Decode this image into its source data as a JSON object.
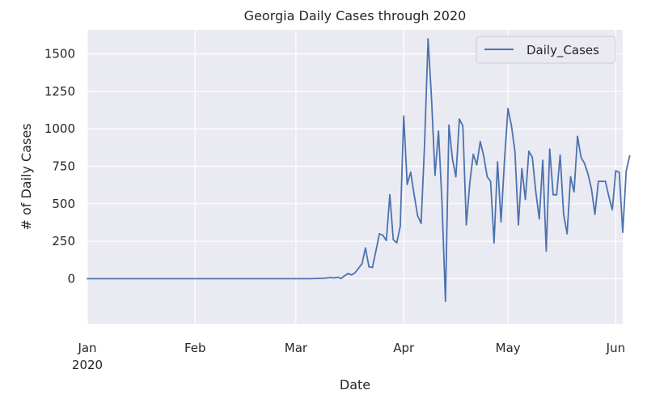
{
  "chart_data": {
    "type": "line",
    "title": "Georgia Daily Cases through 2020",
    "xlabel": "Date",
    "ylabel": "# of Daily Cases",
    "x_ticks": [
      {
        "date": "2020-01-01",
        "label": "Jan",
        "sublabel": "2020"
      },
      {
        "date": "2020-02-01",
        "label": "Feb",
        "sublabel": ""
      },
      {
        "date": "2020-03-01",
        "label": "Mar",
        "sublabel": ""
      },
      {
        "date": "2020-04-01",
        "label": "Apr",
        "sublabel": ""
      },
      {
        "date": "2020-05-01",
        "label": "May",
        "sublabel": ""
      },
      {
        "date": "2020-06-01",
        "label": "Jun",
        "sublabel": ""
      }
    ],
    "xlim": [
      "2020-01-01",
      "2020-06-03"
    ],
    "yticks": [
      0,
      250,
      500,
      750,
      1000,
      1250,
      1500
    ],
    "ylim": [
      -300,
      1660
    ],
    "grid": true,
    "background": "#eaeaf2",
    "legend_position": "top-right",
    "series": [
      {
        "name": "Daily_Cases",
        "color": "#4c72b0",
        "points": [
          [
            "2020-01-01",
            0
          ],
          [
            "2020-03-01",
            0
          ],
          [
            "2020-03-03",
            0
          ],
          [
            "2020-03-05",
            0
          ],
          [
            "2020-03-07",
            2
          ],
          [
            "2020-03-09",
            3
          ],
          [
            "2020-03-11",
            8
          ],
          [
            "2020-03-12",
            5
          ],
          [
            "2020-03-13",
            10
          ],
          [
            "2020-03-14",
            2
          ],
          [
            "2020-03-15",
            20
          ],
          [
            "2020-03-16",
            35
          ],
          [
            "2020-03-17",
            25
          ],
          [
            "2020-03-18",
            40
          ],
          [
            "2020-03-19",
            70
          ],
          [
            "2020-03-20",
            100
          ],
          [
            "2020-03-21",
            205
          ],
          [
            "2020-03-22",
            80
          ],
          [
            "2020-03-23",
            75
          ],
          [
            "2020-03-24",
            185
          ],
          [
            "2020-03-25",
            300
          ],
          [
            "2020-03-26",
            290
          ],
          [
            "2020-03-27",
            255
          ],
          [
            "2020-03-28",
            560
          ],
          [
            "2020-03-29",
            260
          ],
          [
            "2020-03-30",
            240
          ],
          [
            "2020-03-31",
            350
          ],
          [
            "2020-04-01",
            1085
          ],
          [
            "2020-04-02",
            630
          ],
          [
            "2020-04-03",
            710
          ],
          [
            "2020-04-04",
            560
          ],
          [
            "2020-04-05",
            420
          ],
          [
            "2020-04-06",
            370
          ],
          [
            "2020-04-07",
            900
          ],
          [
            "2020-04-08",
            1600
          ],
          [
            "2020-04-09",
            1200
          ],
          [
            "2020-04-10",
            690
          ],
          [
            "2020-04-11",
            985
          ],
          [
            "2020-04-12",
            510
          ],
          [
            "2020-04-13",
            -150
          ],
          [
            "2020-04-14",
            1025
          ],
          [
            "2020-04-15",
            800
          ],
          [
            "2020-04-16",
            680
          ],
          [
            "2020-04-17",
            1065
          ],
          [
            "2020-04-18",
            1020
          ],
          [
            "2020-04-19",
            360
          ],
          [
            "2020-04-20",
            640
          ],
          [
            "2020-04-21",
            830
          ],
          [
            "2020-04-22",
            760
          ],
          [
            "2020-04-23",
            915
          ],
          [
            "2020-04-24",
            820
          ],
          [
            "2020-04-25",
            680
          ],
          [
            "2020-04-26",
            650
          ],
          [
            "2020-04-27",
            240
          ],
          [
            "2020-04-28",
            780
          ],
          [
            "2020-04-29",
            380
          ],
          [
            "2020-04-30",
            790
          ],
          [
            "2020-05-01",
            1135
          ],
          [
            "2020-05-02",
            1020
          ],
          [
            "2020-05-03",
            850
          ],
          [
            "2020-05-04",
            360
          ],
          [
            "2020-05-05",
            735
          ],
          [
            "2020-05-06",
            530
          ],
          [
            "2020-05-07",
            850
          ],
          [
            "2020-05-08",
            810
          ],
          [
            "2020-05-09",
            580
          ],
          [
            "2020-05-10",
            400
          ],
          [
            "2020-05-11",
            790
          ],
          [
            "2020-05-12",
            185
          ],
          [
            "2020-05-13",
            865
          ],
          [
            "2020-05-14",
            560
          ],
          [
            "2020-05-15",
            560
          ],
          [
            "2020-05-16",
            825
          ],
          [
            "2020-05-17",
            430
          ],
          [
            "2020-05-18",
            300
          ],
          [
            "2020-05-19",
            680
          ],
          [
            "2020-05-20",
            580
          ],
          [
            "2020-05-21",
            950
          ],
          [
            "2020-05-22",
            810
          ],
          [
            "2020-05-23",
            770
          ],
          [
            "2020-05-24",
            700
          ],
          [
            "2020-05-25",
            600
          ],
          [
            "2020-05-26",
            430
          ],
          [
            "2020-05-27",
            650
          ],
          [
            "2020-05-28",
            650
          ],
          [
            "2020-05-29",
            650
          ],
          [
            "2020-05-30",
            550
          ],
          [
            "2020-05-31",
            460
          ],
          [
            "2020-06-01",
            720
          ],
          [
            "2020-06-02",
            710
          ],
          [
            "2020-06-03",
            310
          ],
          [
            "2020-06-04",
            720
          ],
          [
            "2020-06-05",
            820
          ]
        ]
      }
    ]
  }
}
